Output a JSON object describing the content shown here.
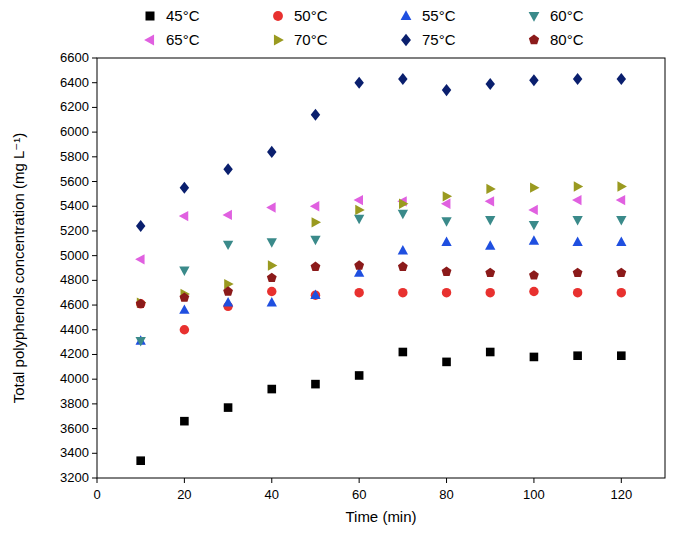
{
  "chart_data": {
    "type": "scatter",
    "x_label": "Time (min)",
    "y_label": "Total polyphenols concentration (mg L⁻¹)",
    "x": [
      10,
      20,
      30,
      40,
      50,
      60,
      70,
      80,
      90,
      100,
      110,
      120
    ],
    "xlim": [
      0,
      130
    ],
    "xticks": [
      0,
      20,
      40,
      60,
      80,
      100,
      120
    ],
    "ylim": [
      3200,
      6600
    ],
    "yticks": [
      3200,
      3400,
      3600,
      3800,
      4000,
      4200,
      4400,
      4600,
      4800,
      5000,
      5200,
      5400,
      5600,
      5800,
      6000,
      6200,
      6400,
      6600
    ],
    "grid": false,
    "legend": "top",
    "series": [
      {
        "name": "45°C",
        "color": "#000000",
        "marker": "square",
        "values": [
          3340,
          3660,
          3770,
          3920,
          3960,
          4030,
          4220,
          4140,
          4220,
          4180,
          4190,
          4190
        ]
      },
      {
        "name": "50°C",
        "color": "#e8312f",
        "marker": "circle",
        "values": [
          4610,
          4400,
          4590,
          4710,
          4680,
          4700,
          4700,
          4700,
          4700,
          4710,
          4700,
          4700
        ]
      },
      {
        "name": "55°C",
        "color": "#1f4fe0",
        "marker": "triangle-up",
        "values": [
          4310,
          4560,
          4620,
          4620,
          4680,
          4860,
          5040,
          5110,
          5080,
          5120,
          5110,
          5110
        ]
      },
      {
        "name": "60°C",
        "color": "#3a8a8a",
        "marker": "triangle-down",
        "values": [
          4310,
          4880,
          5090,
          5110,
          5130,
          5300,
          5340,
          5280,
          5290,
          5250,
          5290,
          5290
        ]
      },
      {
        "name": "65°C",
        "color": "#e060e0",
        "marker": "triangle-left",
        "values": [
          4970,
          5320,
          5330,
          5390,
          5400,
          5450,
          5440,
          5420,
          5440,
          5370,
          5450,
          5450
        ]
      },
      {
        "name": "70°C",
        "color": "#9a9a20",
        "marker": "triangle-right",
        "values": [
          4620,
          4690,
          4770,
          4920,
          5270,
          5370,
          5420,
          5480,
          5540,
          5550,
          5560,
          5560
        ]
      },
      {
        "name": "75°C",
        "color": "#0a1f6e",
        "marker": "diamond",
        "values": [
          5240,
          5550,
          5700,
          5840,
          6140,
          6400,
          6430,
          6340,
          6390,
          6420,
          6430,
          6430
        ]
      },
      {
        "name": "80°C",
        "color": "#8b1a1a",
        "marker": "pentagon",
        "values": [
          4610,
          4660,
          4710,
          4820,
          4910,
          4920,
          4910,
          4870,
          4860,
          4840,
          4860,
          4860
        ]
      }
    ]
  }
}
